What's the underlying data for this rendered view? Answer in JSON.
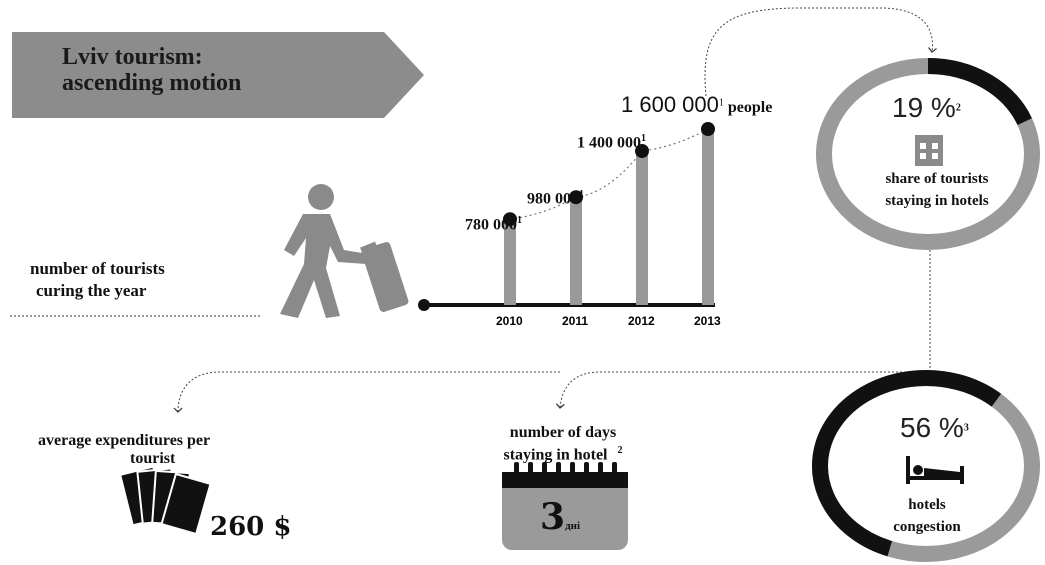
{
  "title": {
    "line1": "Lviv tourism:",
    "line2": "ascending motion"
  },
  "tourists_label": {
    "line1": "number of tourists",
    "line2": "curing the year"
  },
  "unit_label": "people",
  "chart_data": {
    "type": "bar",
    "categories": [
      "2010",
      "2011",
      "2012",
      "2013"
    ],
    "values": [
      780000,
      980000,
      1400000,
      1600000
    ],
    "value_labels": [
      "780 000",
      "980 000",
      "1 400 000",
      "1 600 000"
    ],
    "footnotes": [
      "1",
      "1",
      "1",
      "1"
    ],
    "ylim": [
      0,
      1700000
    ],
    "xlabel": "",
    "ylabel": "",
    "title": ""
  },
  "hotel_share": {
    "percent": "19 %",
    "footnote": "2",
    "line1": "share of tourists",
    "line2": "staying in hotels",
    "fraction": 0.19
  },
  "congestion": {
    "percent": "56 %",
    "footnote": "3",
    "line1": "hotels",
    "line2": "congestion",
    "fraction": 0.56
  },
  "expenditures": {
    "line1": "average expenditures per",
    "line2": "tourist",
    "amount": "260 $"
  },
  "days": {
    "line1": "number of days",
    "line2": "staying in hotel",
    "footnote": "2",
    "value": "3",
    "unit": "дні"
  },
  "icons": [
    "traveler-icon",
    "hotel-building-icon",
    "bed-icon",
    "money-cards-icon",
    "calendar-icon"
  ],
  "colors": {
    "gray": "#999999",
    "dark": "#111111",
    "title_bg": "#8c8c8c"
  }
}
